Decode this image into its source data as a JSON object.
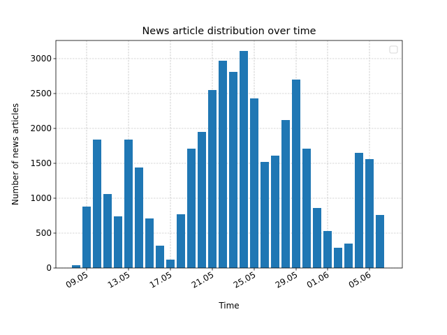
{
  "chart_data": {
    "type": "bar",
    "title": "News article distribution over time",
    "x_label": "Time",
    "y_label": "Number of news articles",
    "x": [
      "08.05",
      "09.05",
      "10.05",
      "11.05",
      "12.05",
      "13.05",
      "14.05",
      "15.05",
      "16.05",
      "17.05",
      "18.05",
      "19.05",
      "20.05",
      "21.05",
      "22.05",
      "23.05",
      "24.05",
      "25.05",
      "26.05",
      "27.05",
      "28.05",
      "29.05",
      "30.05",
      "31.05",
      "01.06",
      "02.06",
      "03.06",
      "04.06",
      "05.06",
      "06.06"
    ],
    "values": [
      40,
      880,
      1840,
      1060,
      740,
      1840,
      1440,
      710,
      320,
      120,
      770,
      1710,
      1950,
      2550,
      2970,
      2810,
      3110,
      2430,
      1520,
      1610,
      2120,
      2700,
      1710,
      860,
      530,
      290,
      350,
      1650,
      1560,
      760
    ],
    "color": "#1f77b4",
    "xticks": [
      "09.05",
      "13.05",
      "17.05",
      "21.05",
      "25.05",
      "29.05",
      "01.06",
      "05.06"
    ],
    "ylim": [
      0,
      3260
    ],
    "yticks": [
      0,
      500,
      1000,
      1500,
      2000,
      2500,
      3000
    ],
    "grid": true,
    "legend": "upper right"
  }
}
